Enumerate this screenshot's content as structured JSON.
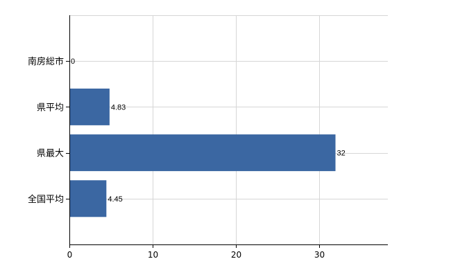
{
  "chart_data": {
    "type": "bar",
    "orientation": "horizontal",
    "categories": [
      "南房総市",
      "県平均",
      "県最大",
      "全国平均"
    ],
    "values": [
      0,
      4.83,
      32,
      4.45
    ],
    "data_labels": [
      "0",
      "4.83",
      "32",
      "4.45"
    ],
    "x_ticks": [
      "0",
      "10",
      "20",
      "30"
    ],
    "xlim": [
      0,
      38.3
    ],
    "title": "",
    "xlabel": "",
    "ylabel": "",
    "grid": true,
    "bar_color": "#3b67a2"
  }
}
